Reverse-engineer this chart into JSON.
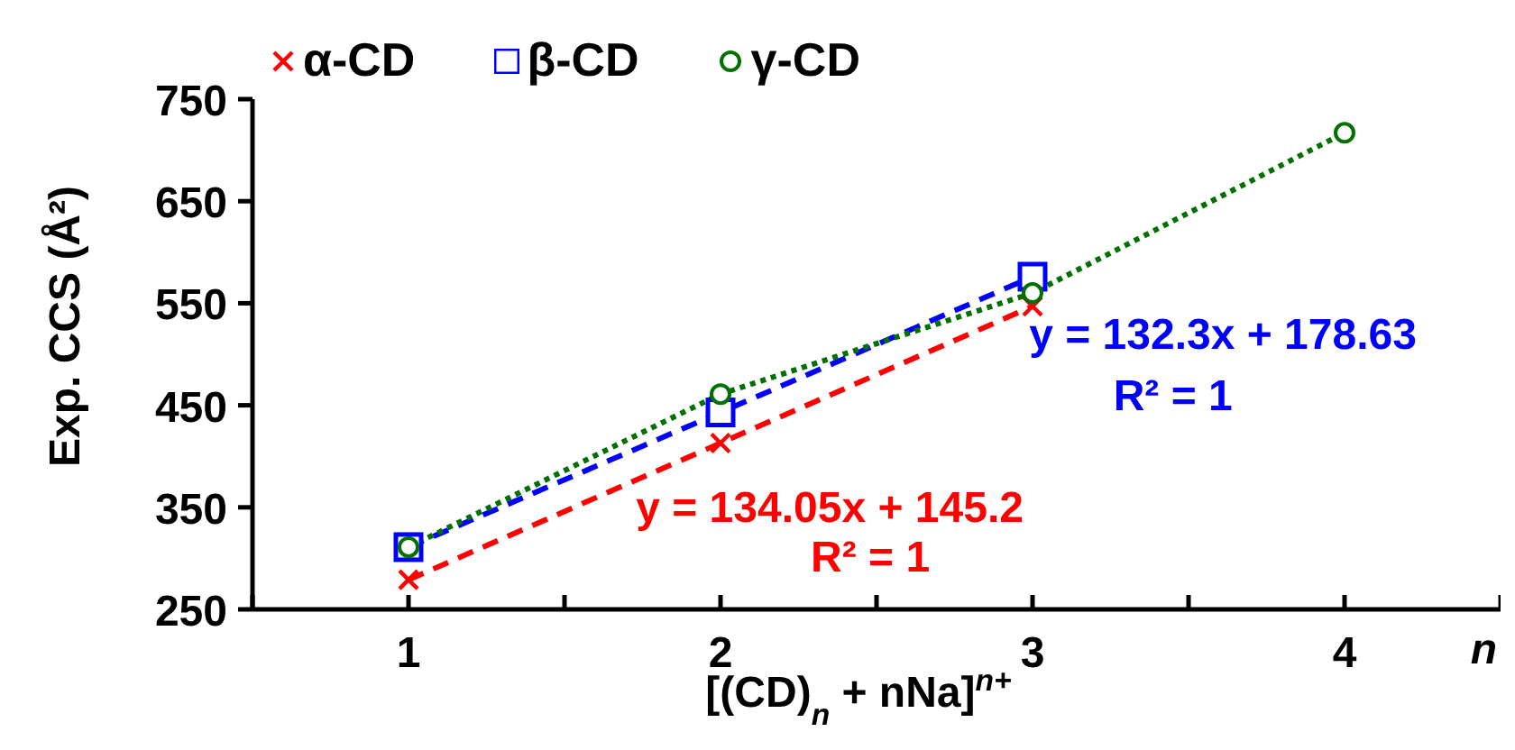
{
  "chart_data": {
    "type": "line",
    "xlabel": "[(CD)$_{n}$ + nNa]$^{n+}$",
    "ylabel": "Exp. CCS (Å²)",
    "xlim": [
      0.5,
      4.5
    ],
    "xticks": [
      {
        "value": 0.5,
        "label": null
      },
      1,
      {
        "value": 1.5,
        "label": null
      },
      2,
      {
        "value": 2.5,
        "label": null
      },
      3,
      {
        "value": 3.5,
        "label": null
      },
      4,
      {
        "value": 4.5,
        "label": null
      }
    ],
    "ylim": [
      250,
      750
    ],
    "yticks": [
      250,
      350,
      450,
      550,
      650,
      750
    ],
    "legend": "top left",
    "series": [
      {
        "name": "α-CD",
        "color": "#ff0000",
        "x": [
          1,
          2,
          3
        ],
        "values": [
          279,
          413,
          547
        ],
        "marker": "cross",
        "line_style": "dashed"
      },
      {
        "name": "β-CD",
        "color": "#0000ff",
        "x": [
          1,
          2,
          3
        ],
        "values": [
          311,
          443,
          576
        ],
        "marker": "square",
        "line_style": "dashed"
      },
      {
        "name": "γ-CD",
        "color": "#007000",
        "x": [
          1,
          2,
          3,
          4
        ],
        "values": [
          311,
          461,
          560,
          717
        ],
        "marker": "circle",
        "line_style": "dotted"
      }
    ],
    "annotations": [
      "y = 132.3x + 178.63",
      "R² = 1",
      "y = 134.05x + 145.2",
      "R² = 1",
      "n"
    ]
  }
}
